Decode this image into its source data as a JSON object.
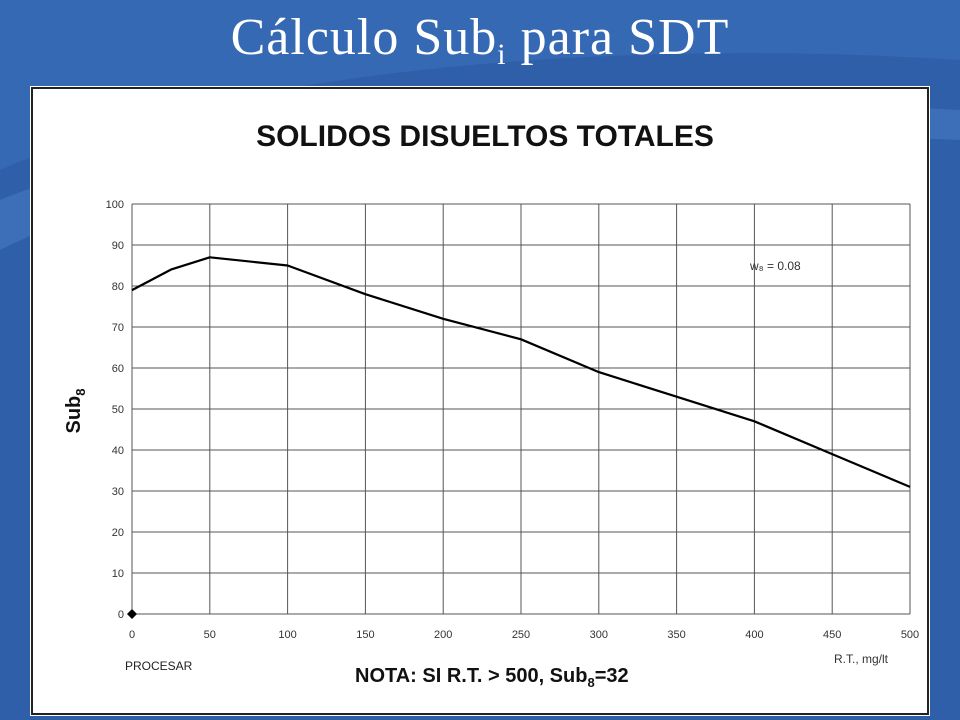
{
  "slide": {
    "title_main": "Cálculo Sub",
    "title_sub": "i",
    "title_rest": " para SDT"
  },
  "colors": {
    "background": "#2f5fa8",
    "chart_background": "#ffffff",
    "line": "#000000",
    "grid": "#555555"
  },
  "chart_data": {
    "type": "line",
    "title": "SOLIDOS DISUELTOS TOTALES",
    "ylabel": "Sub",
    "ylabel_sub": "8",
    "xlabel": "R.T., mg/lt",
    "xlim": [
      0,
      500
    ],
    "ylim": [
      0,
      100
    ],
    "x_ticks": [
      "0",
      "50",
      "100",
      "150",
      "200",
      "250",
      "300",
      "350",
      "400",
      "450",
      "500"
    ],
    "y_ticks": [
      "0",
      "10",
      "20",
      "30",
      "40",
      "50",
      "60",
      "70",
      "80",
      "90",
      "100"
    ],
    "grid": true,
    "annotation": "w₈ = 0.08",
    "note": {
      "prefix": "NOTA: SI R.T. > 500, Sub",
      "sub": "8",
      "suffix": "=32"
    },
    "processing_label": "PROCESAR",
    "series": [
      {
        "x": [
          0,
          25,
          50,
          100,
          150,
          200,
          250,
          300,
          350,
          400,
          450,
          500
        ],
        "y": [
          79,
          84,
          87,
          85,
          78,
          72,
          67,
          59,
          53,
          47,
          39,
          31
        ]
      }
    ],
    "origin_marker": {
      "x": 0,
      "y": 0
    }
  }
}
